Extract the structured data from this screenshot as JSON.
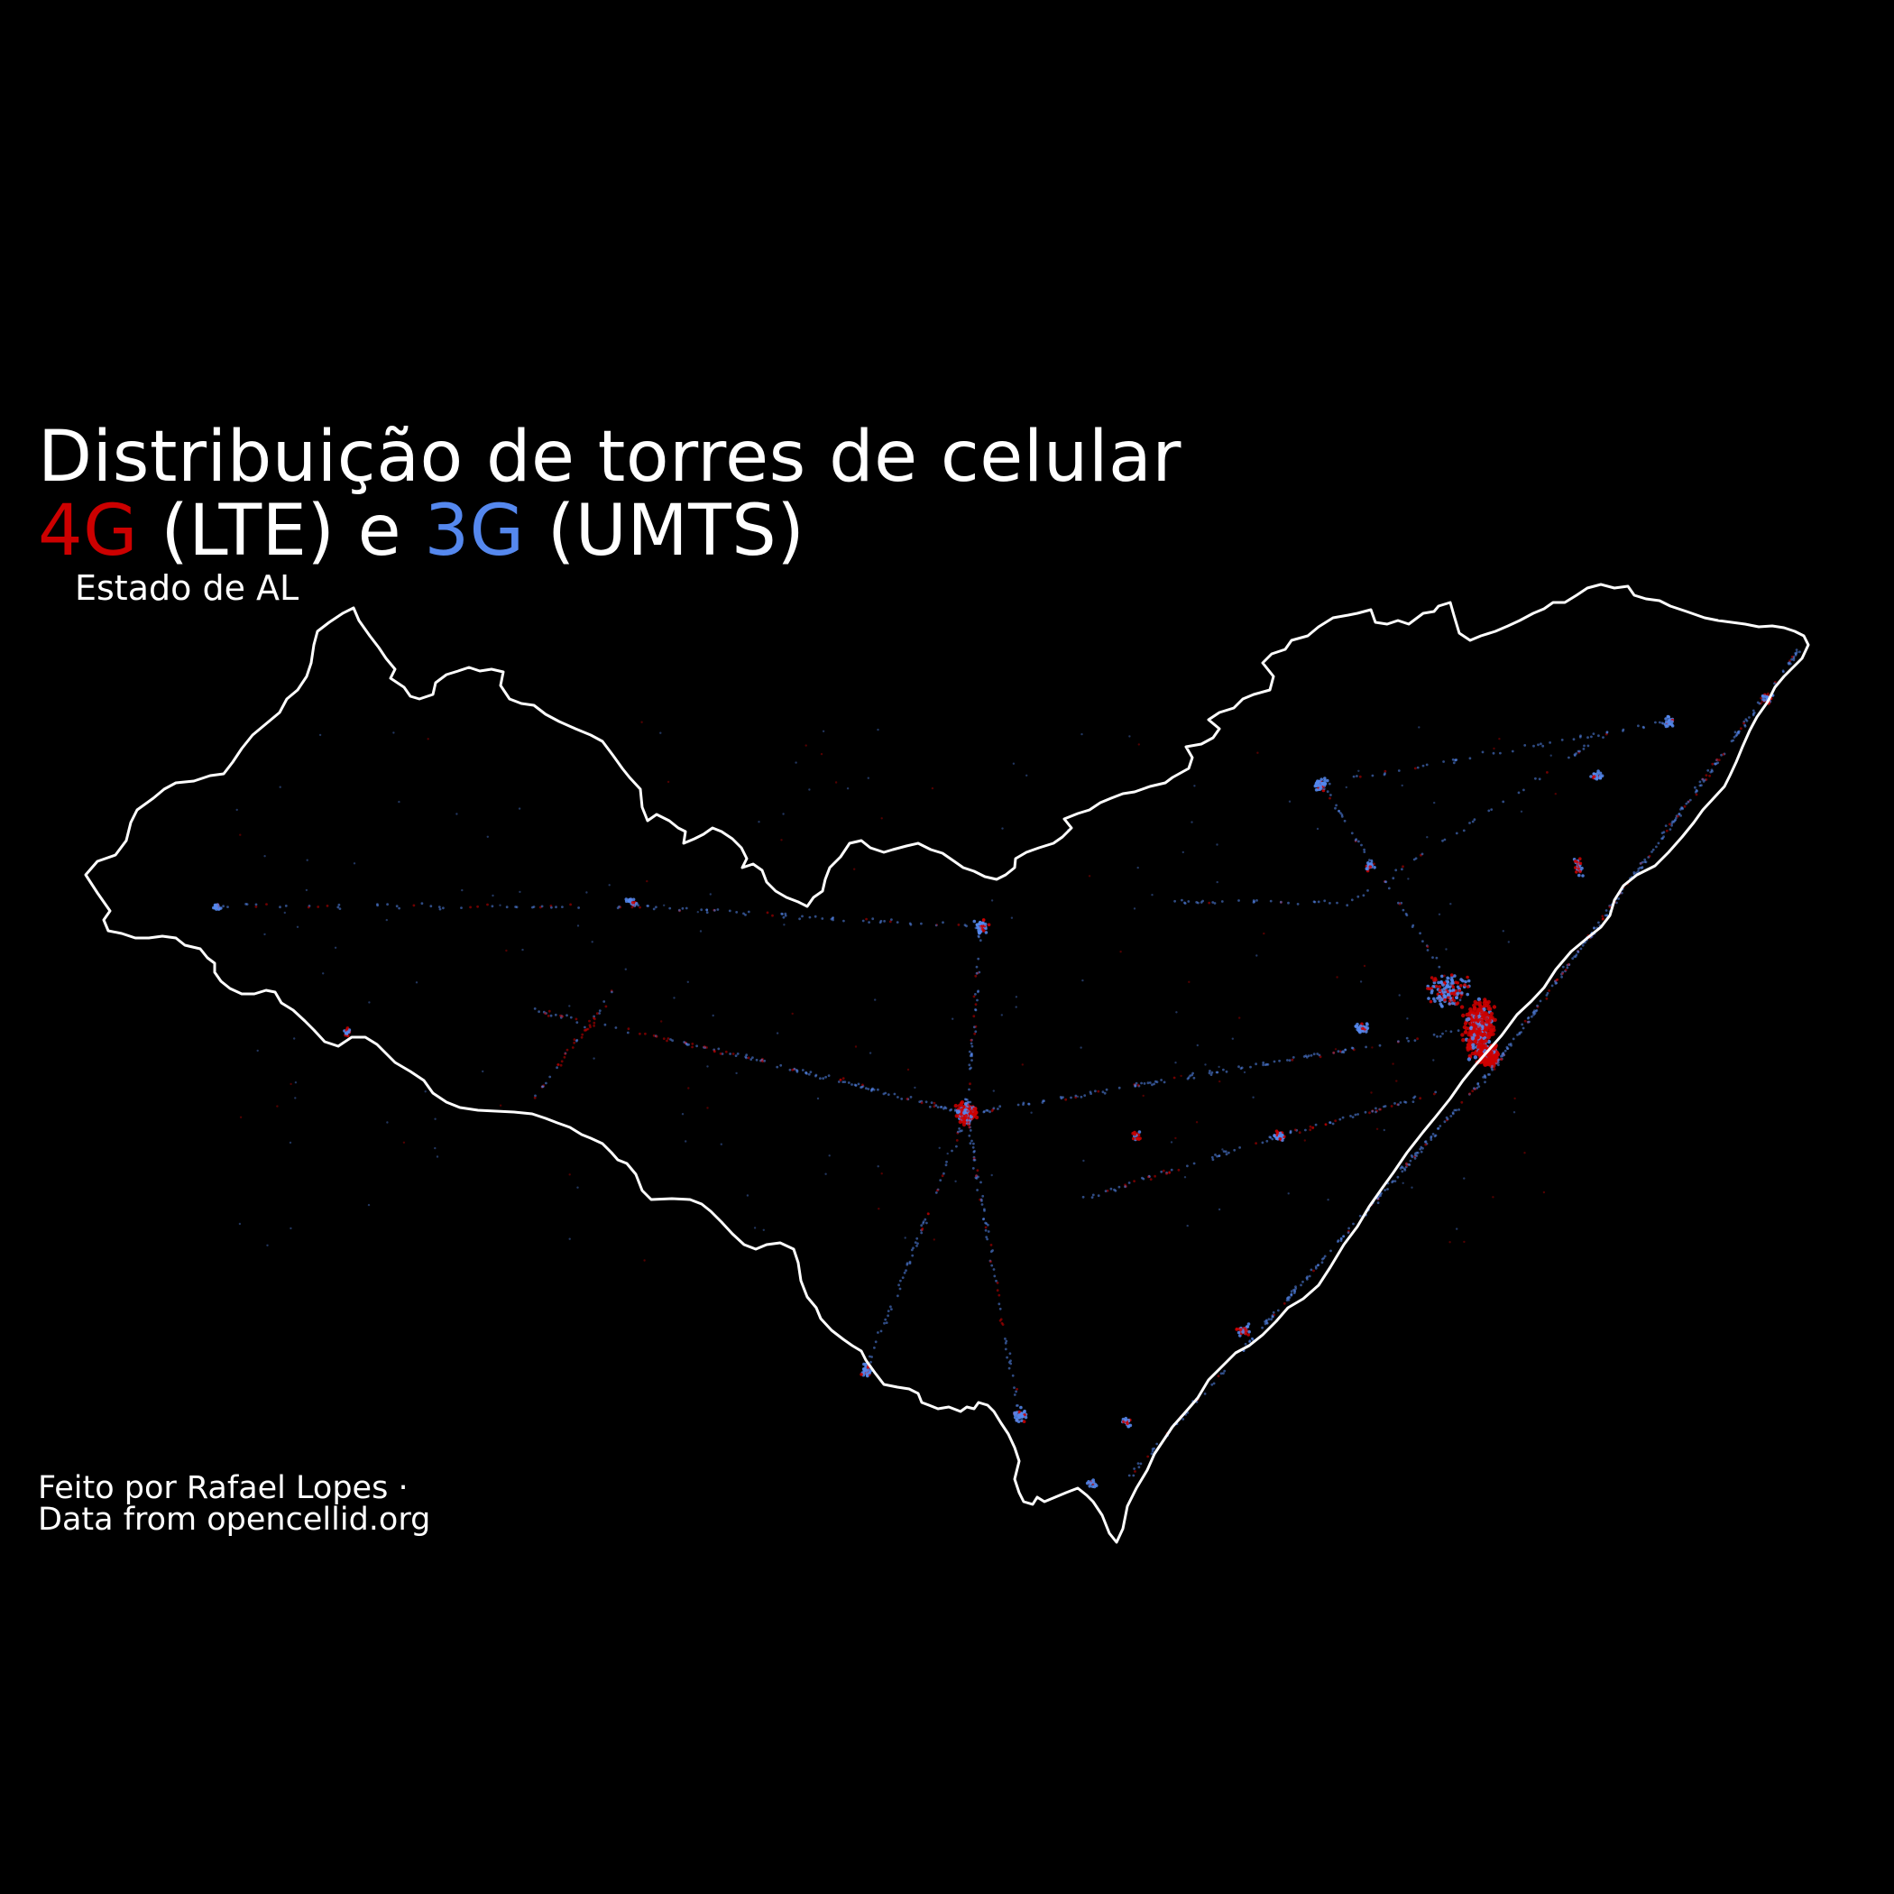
{
  "title": {
    "line1": "Distribuição de torres de celular",
    "lte_label": "4G",
    "lte_suffix": " (LTE) e ",
    "umts_label": "3G",
    "umts_suffix": " (UMTS)"
  },
  "subtitle": "Estado de AL",
  "caption": {
    "line1": "Feito por Rafael Lopes ·",
    "line2": "Data from opencellid.org"
  },
  "colors": {
    "background": "#000000",
    "outline": "#ffffff",
    "lte": "#cc0000",
    "umts": "#5588ee"
  },
  "legend": [
    {
      "technology": "LTE",
      "generation": "4G",
      "color": "#cc0000"
    },
    {
      "technology": "UMTS",
      "generation": "3G",
      "color": "#5588ee"
    }
  ]
}
